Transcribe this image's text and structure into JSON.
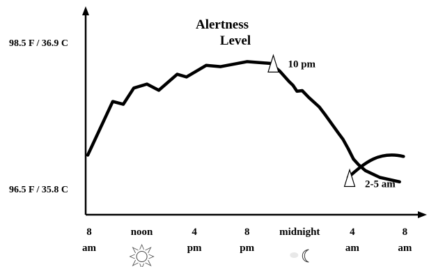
{
  "chart_data": {
    "type": "line",
    "title": "Alertness Level",
    "title_lines": [
      "Alertness",
      "Level"
    ],
    "y_tick_labels": {
      "high": "98.5 F / 36.9 C",
      "low": "96.5 F / 35.8 C"
    },
    "x_ticks": [
      {
        "value": 0,
        "line1": "8",
        "line2": "am"
      },
      {
        "value": 4,
        "line1": "noon",
        "line2": ""
      },
      {
        "value": 8,
        "line1": "4",
        "line2": "pm"
      },
      {
        "value": 12,
        "line1": "8",
        "line2": "pm"
      },
      {
        "value": 16,
        "line1": "midnight",
        "line2": ""
      },
      {
        "value": 20,
        "line1": "4",
        "line2": "am"
      },
      {
        "value": 24,
        "line1": "8",
        "line2": "am"
      }
    ],
    "x_range": [
      0,
      24.8
    ],
    "y_range": [
      0,
      1
    ],
    "series": [
      {
        "values_x": [
          0,
          1.9,
          2.7,
          3.5,
          4.5,
          5.4,
          6.8,
          7.5,
          9.0,
          10.1,
          12.1,
          13.9,
          14.6,
          15.3,
          15.6,
          15.9,
          16.3,
          16.8,
          17.6,
          18.1,
          19.1,
          19.4,
          19.8,
          20.2,
          20.6,
          21.1,
          22.2,
          23.7
        ],
        "values_y": [
          0.208,
          0.624,
          0.602,
          0.728,
          0.759,
          0.711,
          0.835,
          0.814,
          0.904,
          0.894,
          0.933,
          0.919,
          0.859,
          0.779,
          0.749,
          0.703,
          0.708,
          0.655,
          0.581,
          0.514,
          0.372,
          0.331,
          0.258,
          0.177,
          0.132,
          0.088,
          0.035,
          0.001
        ]
      }
    ],
    "annotations": [
      {
        "label": "10 pm",
        "x": 14.0,
        "y": 0.917
      },
      {
        "label": "2-5 am",
        "x": 19.8,
        "y": 0.035
      }
    ],
    "icons": [
      {
        "name": "sun-icon",
        "x": 4.0
      },
      {
        "name": "moon-icon",
        "x": 16.0
      }
    ],
    "grid": false,
    "legend": "none"
  }
}
